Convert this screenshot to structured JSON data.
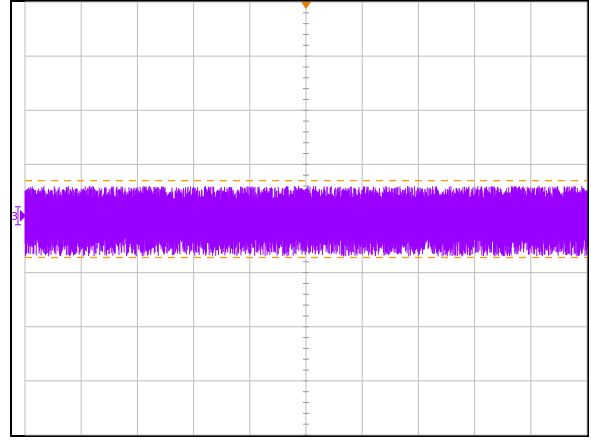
{
  "chart_data": {
    "type": "line",
    "title": "",
    "xlabel": "",
    "ylabel": "",
    "grid": true,
    "x_divisions": 10,
    "y_divisions": 8,
    "xlim": [
      -5,
      5
    ],
    "ylim": [
      -4,
      4
    ],
    "series": [
      {
        "channel": "3",
        "color": "#9900ff",
        "center": 0.05,
        "envelope_upper": 0.6,
        "envelope_lower": -0.7
      }
    ],
    "cursors": {
      "color": "#ff9900",
      "upper": 0.7,
      "lower": -0.72
    },
    "trigger_marker": {
      "color": "#e87a00",
      "x": 0
    },
    "channel_marker_label": "3"
  }
}
